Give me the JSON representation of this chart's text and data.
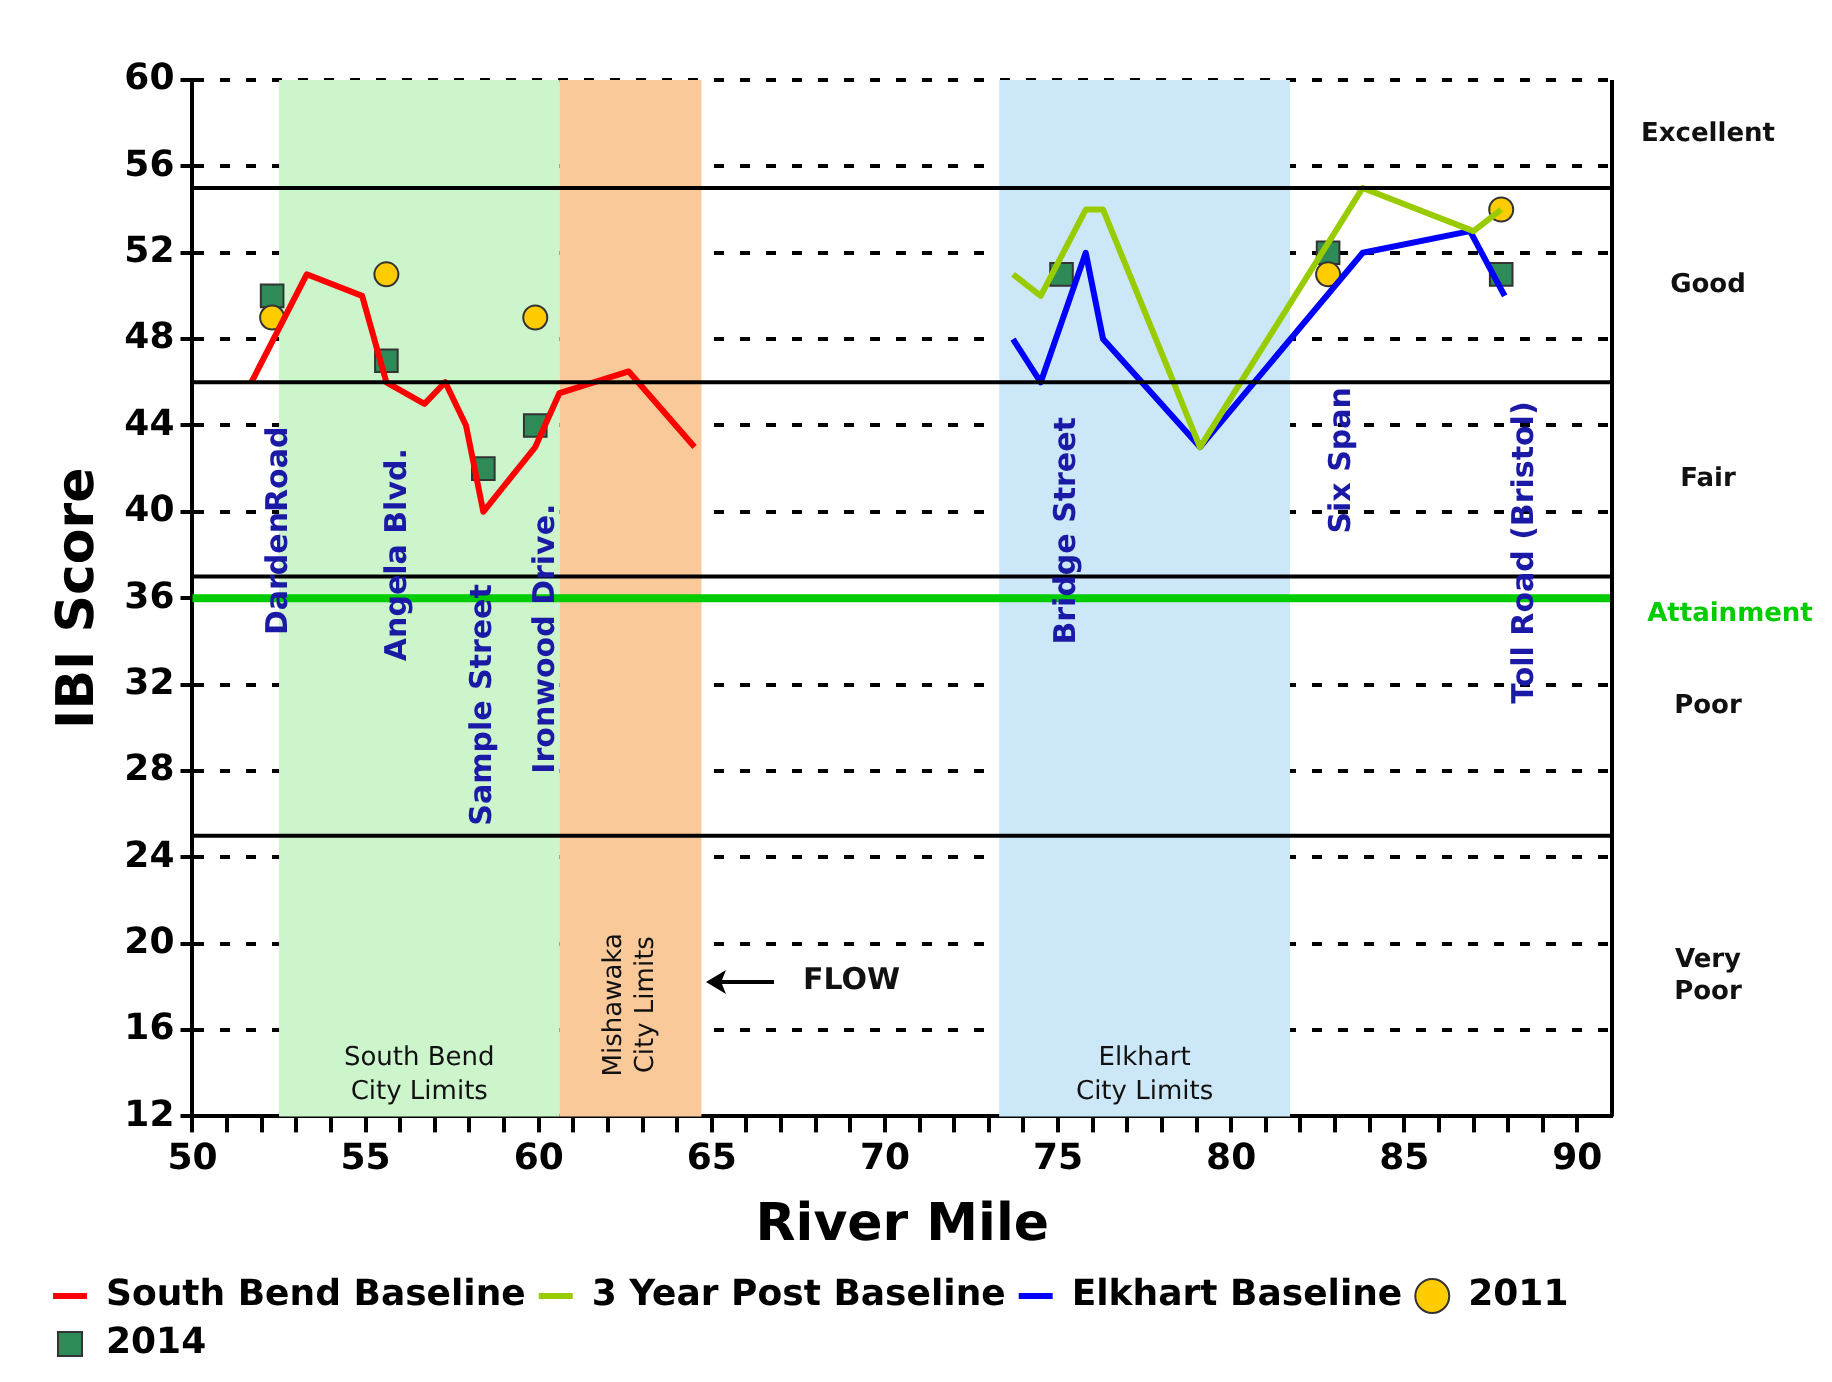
{
  "chart_data": {
    "type": "line",
    "xlabel": "River Mile",
    "ylabel": "IBI Score",
    "xlim": [
      50,
      91
    ],
    "xticks": [
      50,
      {
        "value": 51,
        "label": null
      },
      {
        "value": 52,
        "label": null
      },
      {
        "value": 53,
        "label": null
      },
      {
        "value": 54,
        "label": null
      },
      55,
      {
        "value": 56,
        "label": null
      },
      {
        "value": 57,
        "label": null
      },
      {
        "value": 58,
        "label": null
      },
      {
        "value": 59,
        "label": null
      },
      60,
      {
        "value": 61,
        "label": null
      },
      {
        "value": 62,
        "label": null
      },
      {
        "value": 63,
        "label": null
      },
      {
        "value": 64,
        "label": null
      },
      65,
      {
        "value": 66,
        "label": null
      },
      {
        "value": 67,
        "label": null
      },
      {
        "value": 68,
        "label": null
      },
      {
        "value": 69,
        "label": null
      },
      70,
      {
        "value": 71,
        "label": null
      },
      {
        "value": 72,
        "label": null
      },
      {
        "value": 73,
        "label": null
      },
      {
        "value": 74,
        "label": null
      },
      75,
      {
        "value": 76,
        "label": null
      },
      {
        "value": 77,
        "label": null
      },
      {
        "value": 78,
        "label": null
      },
      {
        "value": 79,
        "label": null
      },
      80,
      {
        "value": 81,
        "label": null
      },
      {
        "value": 82,
        "label": null
      },
      {
        "value": 83,
        "label": null
      },
      {
        "value": 84,
        "label": null
      },
      85,
      {
        "value": 86,
        "label": null
      },
      {
        "value": 87,
        "label": null
      },
      {
        "value": 88,
        "label": null
      },
      {
        "value": 89,
        "label": null
      },
      90
    ],
    "ylim": [
      12,
      60
    ],
    "yticks": [
      12,
      16,
      20,
      24,
      28,
      32,
      36,
      40,
      44,
      48,
      52,
      56,
      60
    ],
    "grid": "y",
    "legend": "bottom",
    "series": [
      {
        "name": "South Bend Baseline",
        "color": "#ff0000",
        "x": [
          51.7,
          53.3,
          54.9,
          55.6,
          56.7,
          57.3,
          57.9,
          58.4,
          59.9,
          60.6,
          62.6,
          64.5
        ],
        "values": [
          46,
          51,
          50,
          46,
          45,
          46,
          44,
          40,
          43,
          45.5,
          46.5,
          43
        ]
      },
      {
        "name": "3 Year Post Baseline",
        "color": "#99cc00",
        "x": [
          73.7,
          74.5,
          75.8,
          76.3,
          79.1,
          83.8,
          87,
          87.8
        ],
        "values": [
          51,
          50,
          54,
          54,
          43,
          55,
          53,
          54
        ]
      },
      {
        "name": "Elkhart Baseline",
        "color": "#0000ff",
        "x": [
          73.7,
          74.5,
          75.8,
          76.3,
          79.1,
          83.8,
          86.9,
          87.9
        ],
        "values": [
          48,
          46,
          52,
          48,
          43,
          52,
          53,
          50
        ]
      },
      {
        "name": "2011",
        "type": "scatter",
        "marker": "circle",
        "color": "#ffcc00",
        "x": [
          52.3,
          55.6,
          59.9,
          82.8,
          87.8
        ],
        "values": [
          49,
          51,
          49,
          51,
          54
        ]
      },
      {
        "name": "2014",
        "type": "scatter",
        "marker": "square",
        "color": "#2e8b57",
        "x": [
          52.3,
          55.6,
          58.4,
          59.9,
          75.1,
          82.8,
          87.8
        ],
        "values": [
          50,
          47,
          42,
          44,
          51,
          52,
          51
        ]
      }
    ],
    "bands": [
      {
        "axis": "x",
        "from": 52.5,
        "to": 60.6,
        "label": "South Bend City Limits",
        "color": "#ccf5cc"
      },
      {
        "axis": "x",
        "from": 60.6,
        "to": 64.7,
        "label": "Mishawaka City Limits",
        "color": "#f9c99a"
      },
      {
        "axis": "x",
        "from": 73.3,
        "to": 81.7,
        "label": "Elkhart City Limits",
        "color": "#cce8f8"
      }
    ],
    "ref_lines": [
      {
        "axis": "y",
        "value": 55,
        "color": "#000000"
      },
      {
        "axis": "y",
        "value": 46,
        "color": "#000000"
      },
      {
        "axis": "y",
        "value": 37,
        "color": "#000000"
      },
      {
        "axis": "y",
        "value": 25,
        "color": "#000000"
      },
      {
        "axis": "y",
        "value": 36,
        "label": "Attainment",
        "color": "#00cc00"
      }
    ],
    "annotations": [
      "DardenRoad",
      "Angela Blvd.",
      "Sample Street",
      "Ironwood Drive.",
      "Bridge Street",
      "Six Span",
      "Toll Road (Bristol)",
      "Excellent",
      "Good",
      "Fair",
      "Poor",
      "Very Poor",
      "FLOW"
    ]
  }
}
